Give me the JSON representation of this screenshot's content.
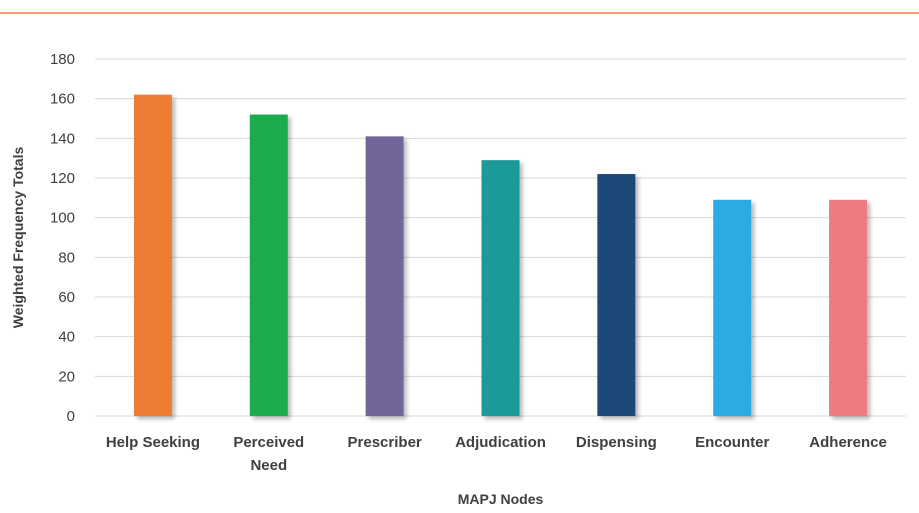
{
  "chart_data": {
    "type": "bar",
    "categories": [
      "Help Seeking",
      "Perceived Need",
      "Prescriber",
      "Adjudication",
      "Dispensing",
      "Encounter",
      "Adherence"
    ],
    "category_lines": [
      [
        "Help Seeking"
      ],
      [
        "Perceived",
        "Need"
      ],
      [
        "Prescriber"
      ],
      [
        "Adjudication"
      ],
      [
        "Dispensing"
      ],
      [
        "Encounter"
      ],
      [
        "Adherence"
      ]
    ],
    "values": [
      162,
      152,
      141,
      129,
      122,
      109,
      109
    ],
    "colors": [
      "#ED7D31",
      "#1CAB4E",
      "#72659A",
      "#1E9A9A",
      "#1C4A78",
      "#29ABE2",
      "#F07A82"
    ],
    "title": "",
    "xlabel": "MAPJ Nodes",
    "ylabel": "Weighted Frequency Totals",
    "ylim": [
      0,
      180
    ],
    "yticks": [
      0,
      20,
      40,
      60,
      80,
      100,
      120,
      140,
      160,
      180
    ],
    "grid": true,
    "legend": "none",
    "top_rule_color": "#F2A07B",
    "gridline_color": "#D9D9D9",
    "bar_shadow": true
  }
}
